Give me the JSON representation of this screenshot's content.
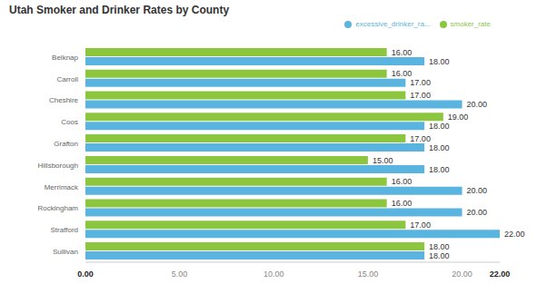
{
  "chart_data": {
    "type": "bar",
    "title": "Utah Smoker and Drinker Rates by County",
    "orientation": "horizontal",
    "categories": [
      "Belknap",
      "Carroll",
      "Cheshire",
      "Coos",
      "Grafton",
      "Hillsborough",
      "Merrimack",
      "Rockingham",
      "Strafford",
      "Sullivan"
    ],
    "series": [
      {
        "name": "smoker_rate",
        "color": "#8cc63f",
        "values": [
          16,
          16,
          17,
          19,
          17,
          15,
          16,
          16,
          17,
          18
        ],
        "value_labels": [
          "16.00",
          "16.00",
          "17.00",
          "19.00",
          "17.00",
          "15.00",
          "16.00",
          "16.00",
          "17.00",
          "18.00"
        ]
      },
      {
        "name": "excessive_drinker_ra...",
        "color": "#5ab4e0",
        "values": [
          18,
          17,
          20,
          18,
          18,
          18,
          20,
          20,
          22,
          18
        ],
        "value_labels": [
          "18.00",
          "17.00",
          "20.00",
          "18.00",
          "18.00",
          "18.00",
          "20.00",
          "20.00",
          "22.00",
          "18.00"
        ]
      }
    ],
    "xlim": [
      0,
      22
    ],
    "xticks": [
      {
        "value": 0,
        "label": "0.00"
      },
      {
        "value": 5,
        "label": "5.00"
      },
      {
        "value": 10,
        "label": "10.00"
      },
      {
        "value": 15,
        "label": "15.00"
      },
      {
        "value": 20,
        "label": "20.00"
      },
      {
        "value": 22,
        "label": "22.00"
      }
    ],
    "grid": false,
    "legend": "upper right",
    "data_labels": true
  }
}
